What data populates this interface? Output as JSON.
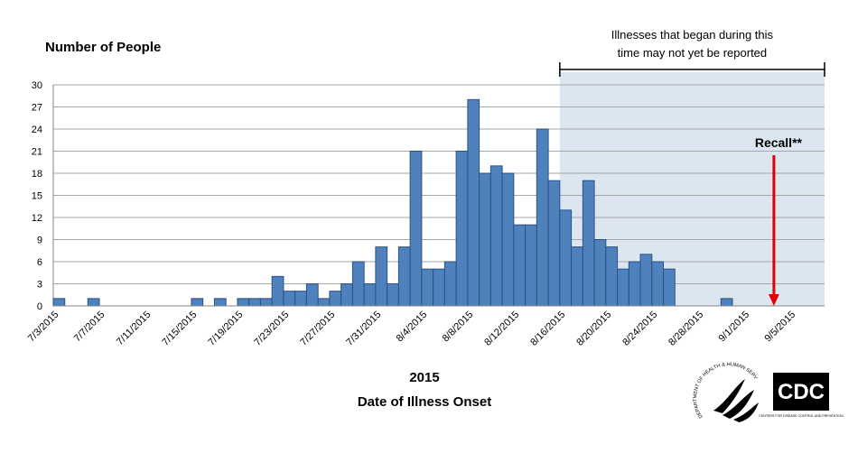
{
  "chart_data": {
    "type": "bar",
    "title": "Number of People",
    "xlabel_year": "2015",
    "xlabel": "Date of Illness Onset",
    "categories": [
      "7/3/2015",
      null,
      null,
      null,
      "7/7/2015",
      null,
      null,
      null,
      "7/11/2015",
      null,
      null,
      null,
      "7/15/2015",
      null,
      null,
      null,
      "7/19/2015",
      null,
      null,
      null,
      "7/23/2015",
      null,
      null,
      null,
      "7/27/2015",
      null,
      null,
      null,
      "7/31/2015",
      null,
      null,
      null,
      "8/4/2015",
      null,
      null,
      null,
      "8/8/2015",
      null,
      null,
      null,
      "8/12/2015",
      null,
      null,
      null,
      "8/16/2015",
      null,
      null,
      null,
      "8/20/2015",
      null,
      null,
      null,
      "8/24/2015",
      null,
      null,
      null,
      "8/28/2015",
      null,
      null,
      null,
      "9/1/2015",
      null,
      null,
      null,
      "9/5/2015",
      null,
      null
    ],
    "values": [
      1,
      0,
      0,
      1,
      0,
      0,
      0,
      0,
      0,
      0,
      0,
      0,
      1,
      0,
      1,
      0,
      1,
      1,
      1,
      4,
      2,
      2,
      3,
      1,
      2,
      3,
      6,
      3,
      8,
      3,
      8,
      21,
      5,
      5,
      6,
      21,
      28,
      18,
      19,
      18,
      11,
      11,
      24,
      17,
      13,
      8,
      17,
      9,
      8,
      5,
      6,
      7,
      6,
      5,
      0,
      0,
      0,
      0,
      1,
      0,
      0,
      0,
      0,
      0,
      0,
      0,
      0
    ],
    "color": "#4f81bd",
    "ylim": [
      0,
      30
    ],
    "yticks": [
      0,
      3,
      6,
      9,
      12,
      15,
      18,
      21,
      24,
      27,
      30
    ],
    "grid": true,
    "annotations": {
      "reporting_note": [
        "Illnesses that began during this",
        "time may not yet be reported"
      ],
      "recall": "Recall**"
    }
  },
  "logos": {
    "hhs": "DEPARTMENT OF HEALTH & HUMAN SERVICES USA",
    "cdc": "CDC",
    "cdc_sub": "CENTERS FOR DISEASE CONTROL AND PREVENTION"
  }
}
